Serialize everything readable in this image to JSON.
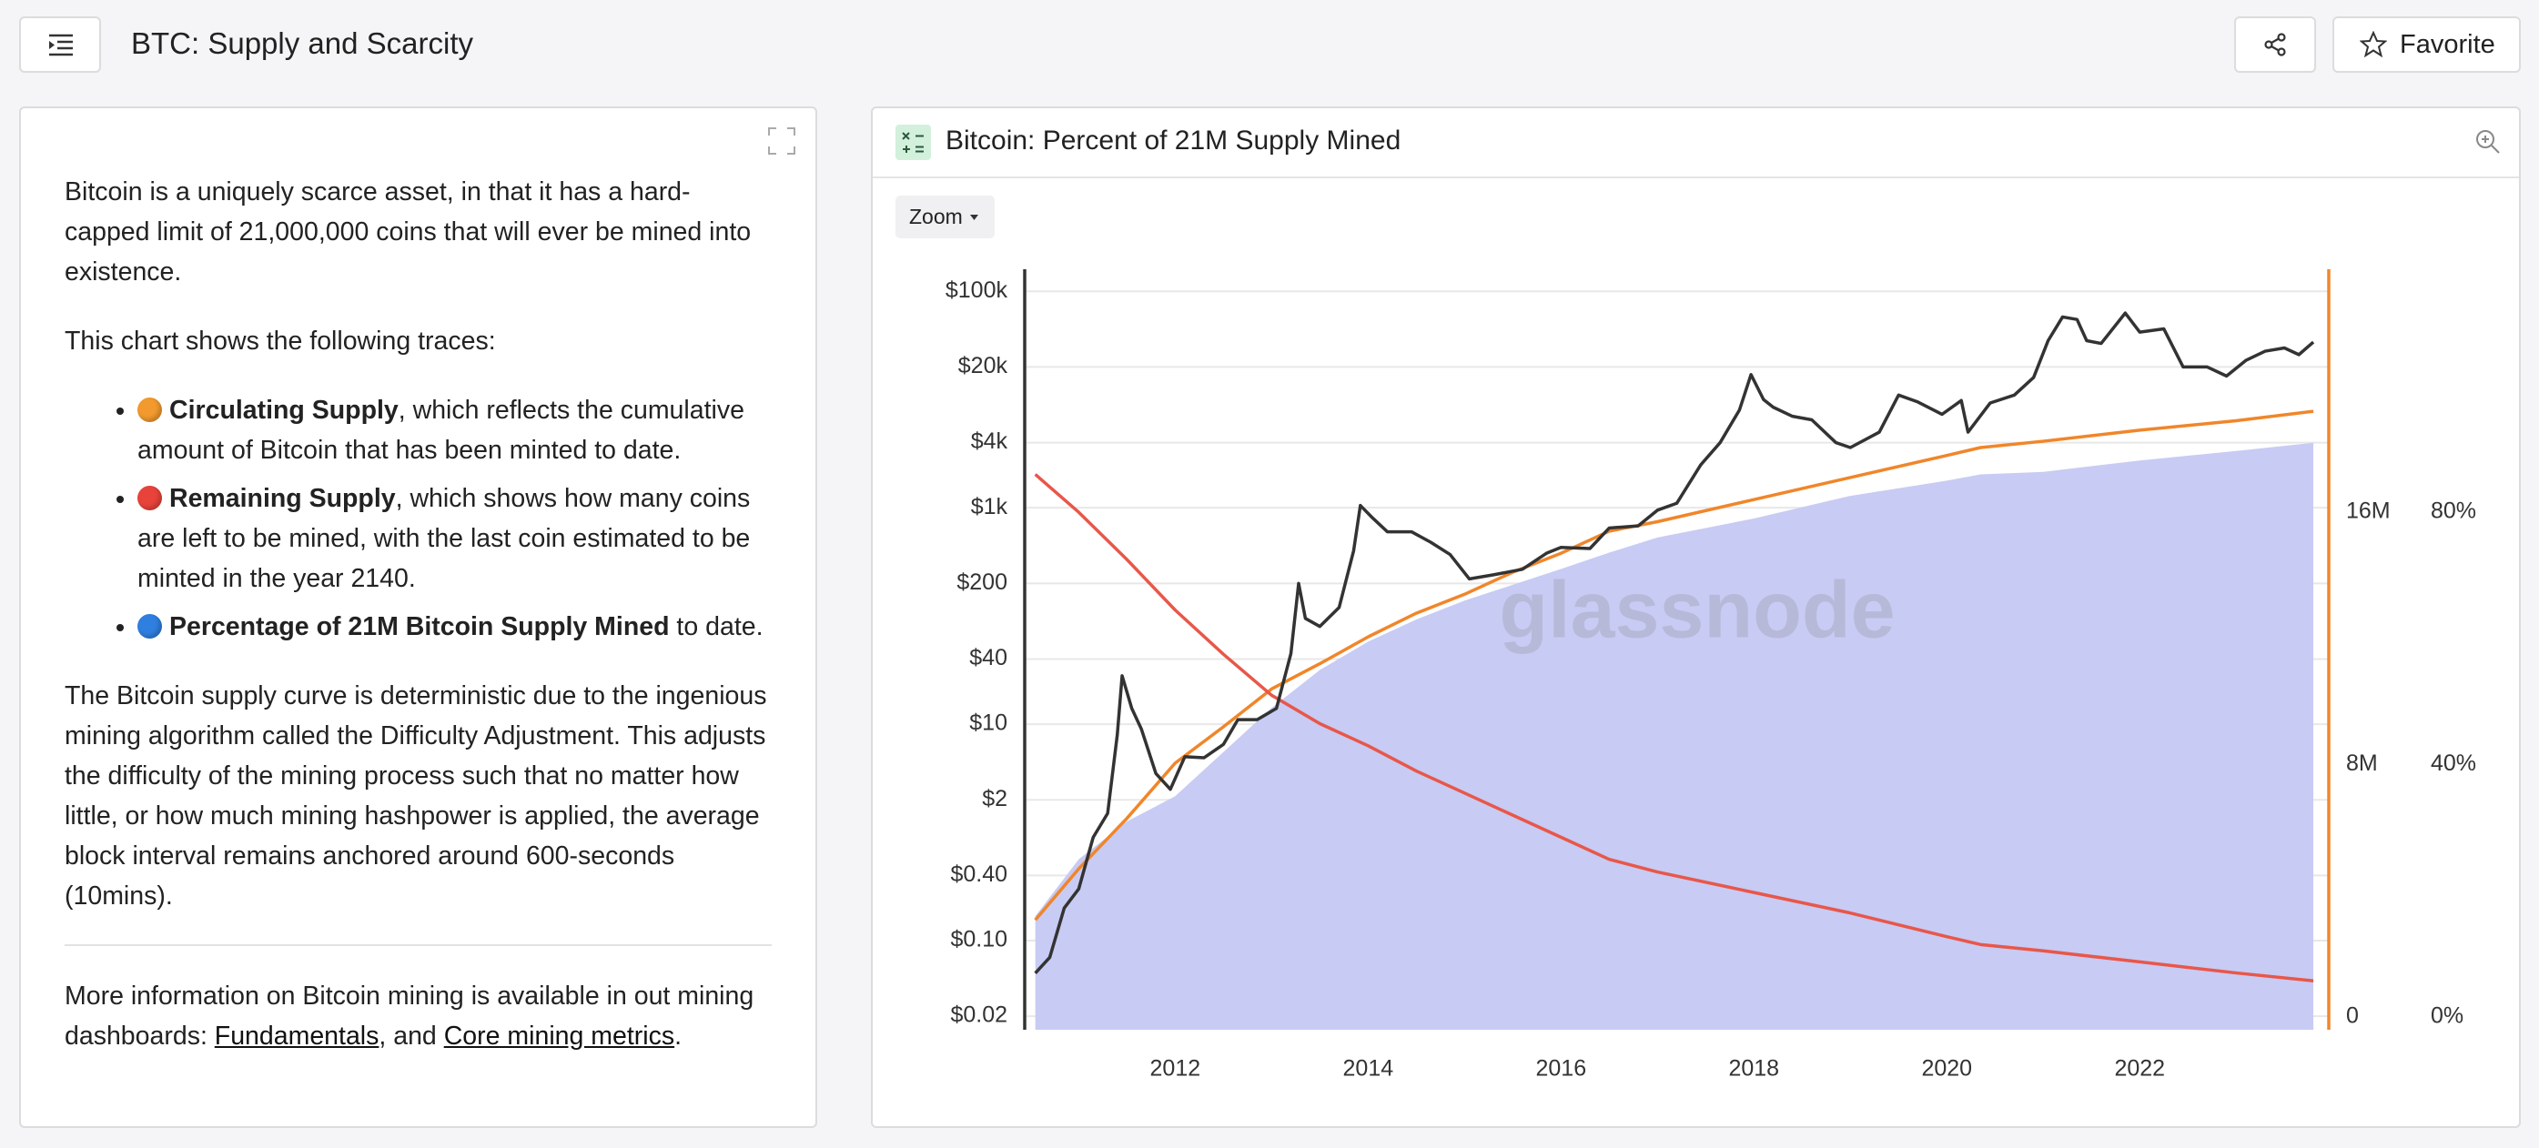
{
  "header": {
    "title": "BTC: Supply and Scarcity",
    "favorite": "Favorite"
  },
  "article": {
    "intro": "Bitcoin is a uniquely scarce asset, in that it has a hard-capped limit of 21,000,000 coins that will ever be mined into existence.",
    "lead": "This chart shows the following traces:",
    "traces": [
      {
        "dot_color": "#f29a2e",
        "bold": "Circulating Supply",
        "text": ", which reflects the cumulative amount of Bitcoin that has been minted to date."
      },
      {
        "dot_color": "#e8433a",
        "bold": "Remaining Supply",
        "text": ", which shows how many coins are left to be mined, with the last coin estimated to be minted in the year 2140."
      },
      {
        "dot_color": "#2f7fe0",
        "bold": "Percentage of 21M Bitcoin Supply Mined",
        "text": " to date."
      }
    ],
    "explanation": "The Bitcoin supply curve is deterministic due to the ingenious mining algorithm called the Difficulty Adjustment. This adjusts the difficulty of the mining process such that no matter how little, or how much mining hashpower is applied, the average block interval remains anchored around 600-seconds (10mins).",
    "more": [
      {
        "text": "More information on Bitcoin mining is available in out mining dashboards: "
      },
      {
        "link": "Fundamentals"
      },
      {
        "text": ", and "
      },
      {
        "link": "Core mining metrics"
      },
      {
        "text": "."
      }
    ]
  },
  "toolbar": {
    "zoom": "Zoom"
  },
  "chart_data": {
    "type": "line",
    "title": "Bitcoin: Percent of 21M Supply Mined",
    "watermark": "glassnode",
    "grid": true,
    "xlim": [
      2010.44,
      2023.96
    ],
    "xticks": [
      2012,
      2014,
      2016,
      2018,
      2020,
      2022
    ],
    "yscale": "log",
    "ylim": [
      0.015,
      160000
    ],
    "yticks": [
      {
        "value": 0.02,
        "label": "$0.02"
      },
      {
        "value": 0.1,
        "label": "$0.10"
      },
      {
        "value": 0.4,
        "label": "$0.40"
      },
      {
        "value": 2,
        "label": "$2"
      },
      {
        "value": 10,
        "label": "$10"
      },
      {
        "value": 40,
        "label": "$40"
      },
      {
        "value": 200,
        "label": "$200"
      },
      {
        "value": 1000,
        "label": "$1k"
      },
      {
        "value": 4000,
        "label": "$4k"
      },
      {
        "value": 20000,
        "label": "$20k"
      },
      {
        "value": 100000,
        "label": "$100k"
      }
    ],
    "y2lim": [
      -400000,
      23700000
    ],
    "y2ticks": [
      0,
      {
        "value": 8000000,
        "label": "8M"
      },
      {
        "value": 16000000,
        "label": "16M"
      }
    ],
    "y3lim": [
      -2,
      118.5
    ],
    "y3ticks": [
      {
        "value": 0,
        "label": "0%"
      },
      {
        "value": 40,
        "label": "40%"
      },
      {
        "value": 80,
        "label": "80%"
      }
    ],
    "series": [
      {
        "type": "area",
        "axis": "y3",
        "color": "#c8cbf3",
        "x": [
          2010.55,
          2011.0,
          2011.5,
          2012.0,
          2012.5,
          2013.0,
          2013.5,
          2014.0,
          2014.5,
          2015.0,
          2015.5,
          2016.0,
          2016.5,
          2017.0,
          2018.0,
          2019.0,
          2020.0,
          2020.35,
          2021.0,
          2022.0,
          2023.0,
          2023.8
        ],
        "values": [
          16,
          25,
          31,
          35,
          42,
          49,
          55,
          59.5,
          63,
          66,
          68.5,
          71,
          73.6,
          76,
          79,
          82.6,
          85,
          86,
          86.4,
          88.2,
          89.7,
          91
        ]
      },
      {
        "type": "line",
        "axis": "y2",
        "color": "#f0862a",
        "x": [
          2010.55,
          2011.0,
          2011.5,
          2012.0,
          2012.5,
          2013.0,
          2013.5,
          2014.0,
          2014.5,
          2015.0,
          2015.5,
          2016.0,
          2016.5,
          2017.0,
          2018.0,
          2019.0,
          2020.0,
          2020.35,
          2021.0,
          2022.0,
          2023.0,
          2023.8
        ],
        "values": [
          3080000,
          4700000,
          6300000,
          8050000,
          9200000,
          10400000,
          11200000,
          12050000,
          12800000,
          13400000,
          14100000,
          14700000,
          15400000,
          15700000,
          16400000,
          17100000,
          17800000,
          18050000,
          18250000,
          18600000,
          18900000,
          19200000
        ]
      },
      {
        "type": "line",
        "axis": "y2",
        "color": "#e8574a",
        "x": [
          2010.55,
          2011.0,
          2011.5,
          2012.0,
          2012.5,
          2013.0,
          2013.5,
          2014.0,
          2014.5,
          2015.0,
          2015.5,
          2016.0,
          2016.5,
          2017.0,
          2018.0,
          2019.0,
          2020.0,
          2020.35,
          2021.0,
          2022.0,
          2023.0,
          2023.8
        ],
        "values": [
          17200000,
          16000000,
          14500000,
          12900000,
          11500000,
          10200000,
          9300000,
          8600000,
          7800000,
          7100000,
          6400000,
          5700000,
          5000000,
          4600000,
          3950000,
          3300000,
          2550000,
          2300000,
          2100000,
          1750000,
          1400000,
          1150000
        ]
      },
      {
        "type": "line",
        "axis": "y",
        "color": "#333333",
        "x": [
          2010.55,
          2010.7,
          2010.85,
          2011.0,
          2011.15,
          2011.3,
          2011.4,
          2011.45,
          2011.55,
          2011.65,
          2011.8,
          2011.95,
          2012.1,
          2012.3,
          2012.5,
          2012.65,
          2012.85,
          2013.05,
          2013.2,
          2013.28,
          2013.35,
          2013.5,
          2013.7,
          2013.85,
          2013.92,
          2014.05,
          2014.2,
          2014.45,
          2014.65,
          2014.85,
          2015.05,
          2015.3,
          2015.6,
          2015.85,
          2016.0,
          2016.3,
          2016.5,
          2016.8,
          2017.0,
          2017.2,
          2017.45,
          2017.65,
          2017.85,
          2017.97,
          2018.1,
          2018.2,
          2018.4,
          2018.6,
          2018.85,
          2019.0,
          2019.3,
          2019.5,
          2019.7,
          2019.95,
          2020.15,
          2020.22,
          2020.45,
          2020.7,
          2020.9,
          2021.05,
          2021.2,
          2021.35,
          2021.45,
          2021.6,
          2021.85,
          2022.0,
          2022.25,
          2022.45,
          2022.7,
          2022.9,
          2023.1,
          2023.3,
          2023.5,
          2023.65,
          2023.8
        ],
        "values": [
          0.05,
          0.07,
          0.2,
          0.3,
          0.9,
          1.5,
          8,
          28,
          14,
          9,
          3.5,
          2.5,
          5,
          4.9,
          6.5,
          11,
          11,
          14,
          45,
          200,
          95,
          80,
          120,
          400,
          1050,
          800,
          600,
          600,
          480,
          370,
          220,
          240,
          270,
          380,
          430,
          420,
          650,
          680,
          950,
          1100,
          2500,
          4000,
          8000,
          17000,
          10000,
          8500,
          7000,
          6500,
          4000,
          3600,
          5000,
          11000,
          9500,
          7300,
          9800,
          5000,
          9300,
          11000,
          16000,
          35000,
          58000,
          55000,
          35000,
          33000,
          63000,
          42000,
          45000,
          20000,
          20000,
          16500,
          23000,
          28000,
          30000,
          26000,
          34000
        ]
      }
    ]
  }
}
